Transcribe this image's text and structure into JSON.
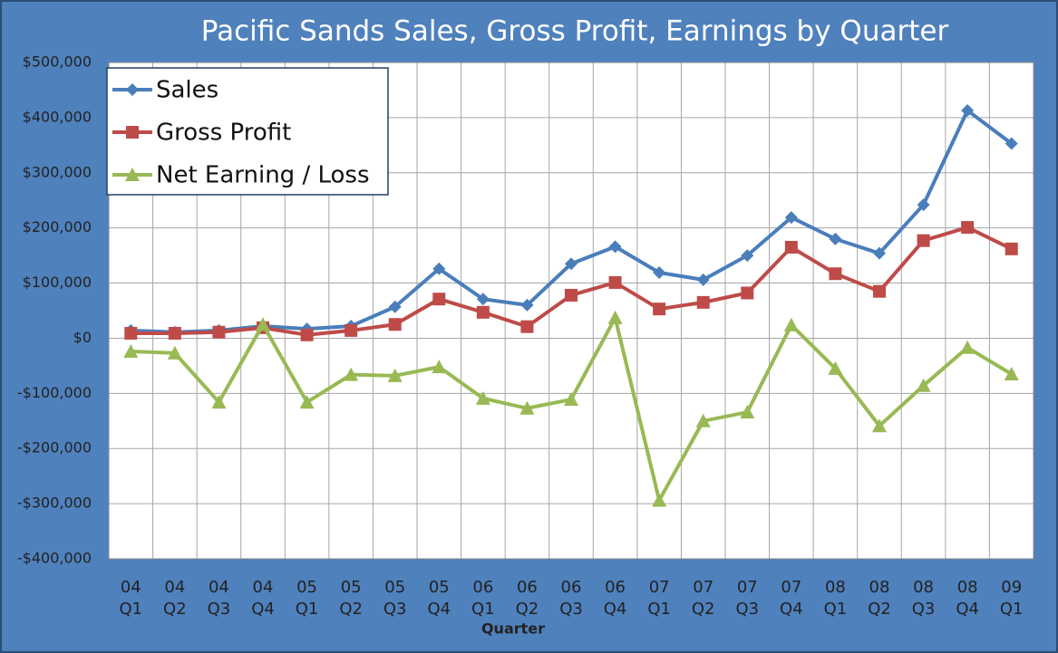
{
  "chart_data": {
    "type": "line",
    "title": "Pacific Sands Sales, Gross Profit, Earnings by Quarter",
    "x_label": "Quarter",
    "categories": [
      "04 Q1",
      "04 Q2",
      "04 Q3",
      "04 Q4",
      "05 Q1",
      "05 Q2",
      "05 Q3",
      "05 Q4",
      "06 Q1",
      "06 Q2",
      "06 Q3",
      "06 Q4",
      "07 Q1",
      "07 Q2",
      "07 Q3",
      "07 Q4",
      "08 Q1",
      "08 Q2",
      "08 Q3",
      "08 Q4",
      "09 Q1"
    ],
    "series": [
      {
        "name": "Sales",
        "color": "#4a7ebb",
        "marker": "diamond",
        "values": [
          14000,
          11000,
          14000,
          22000,
          17000,
          22000,
          57000,
          126000,
          71000,
          60000,
          135000,
          166000,
          119000,
          106000,
          150000,
          219000,
          180000,
          154000,
          242000,
          413000,
          353000
        ]
      },
      {
        "name": "Gross Profit",
        "color": "#be4b48",
        "marker": "square",
        "values": [
          9000,
          9000,
          11000,
          19000,
          6000,
          14000,
          25000,
          71000,
          47000,
          21000,
          78000,
          101000,
          53000,
          65000,
          82000,
          165000,
          117000,
          85000,
          177000,
          201000,
          162000
        ]
      },
      {
        "name": "Net Earning / Loss",
        "color": "#98b954",
        "marker": "triangle",
        "values": [
          -24000,
          -27000,
          -116000,
          25000,
          -116000,
          -66000,
          -68000,
          -52000,
          -109000,
          -127000,
          -111000,
          37000,
          -294000,
          -150000,
          -134000,
          24000,
          -55000,
          -159000,
          -86000,
          -17000,
          -65000
        ]
      }
    ],
    "ylim": [
      -400000,
      500000
    ],
    "yticks": [
      {
        "value": -400000,
        "label": "-$400,000"
      },
      {
        "value": -300000,
        "label": "-$300,000"
      },
      {
        "value": -200000,
        "label": "-$200,000"
      },
      {
        "value": -100000,
        "label": "-$100,000"
      },
      {
        "value": 0,
        "label": "$0"
      },
      {
        "value": 100000,
        "label": "$100,000"
      },
      {
        "value": 200000,
        "label": "$200,000"
      },
      {
        "value": 300000,
        "label": "$300,000"
      },
      {
        "value": 400000,
        "label": "$400,000"
      },
      {
        "value": 500000,
        "label": "$500,000"
      }
    ],
    "grid": true,
    "legend": "upper left"
  }
}
